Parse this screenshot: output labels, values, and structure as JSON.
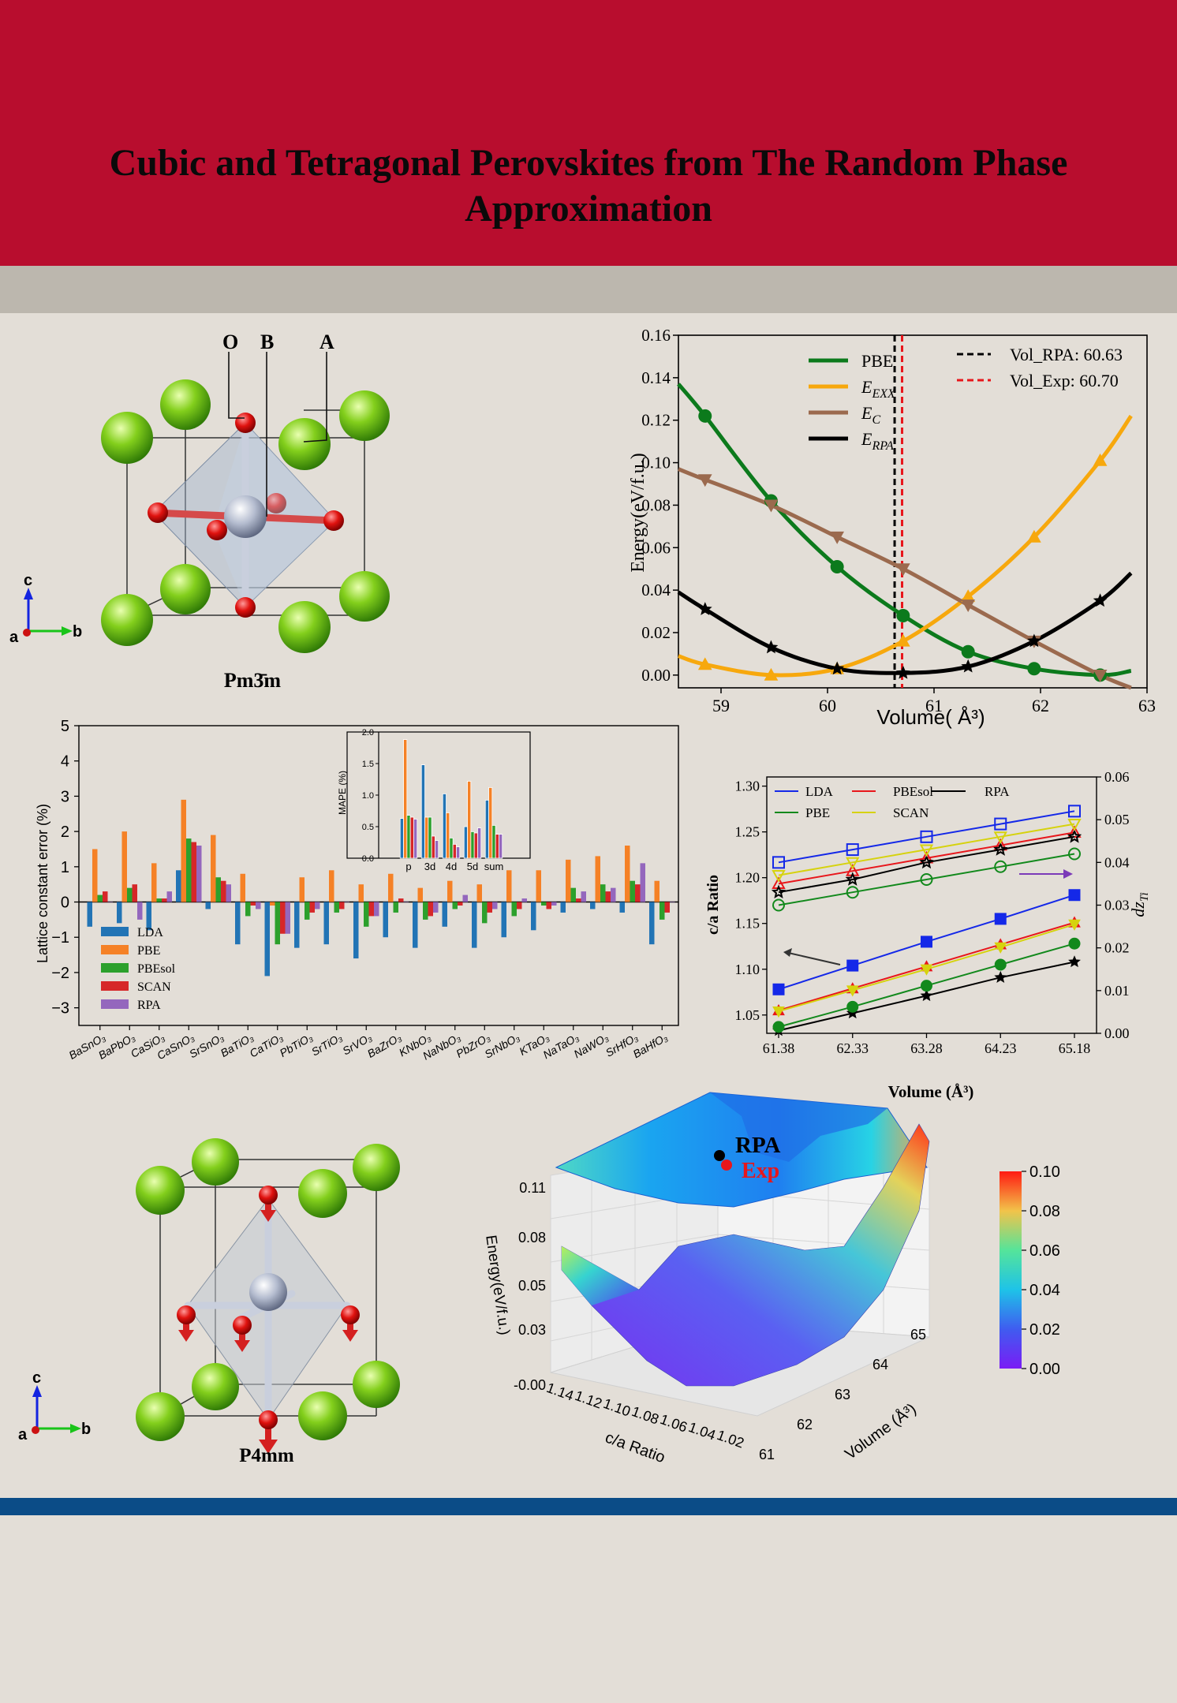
{
  "poster": {
    "title": "Cubic and Tetragonal Perovskites from The Random Phase Approximation",
    "colors": {
      "header": "#b80d2e",
      "band": "#bcb7ae",
      "background": "#e3ded7",
      "footer": "#0b4c87"
    }
  },
  "cubic_structure": {
    "labels": {
      "o": "O",
      "b": "B",
      "a": "A"
    },
    "space_group": "Pm3̄m",
    "axes": {
      "c": "c",
      "a": "a",
      "b": "b"
    }
  },
  "tetragonal_structure": {
    "space_group": "P4mm",
    "axes": {
      "c": "c",
      "a": "a",
      "b": "b"
    }
  },
  "chart_data": [
    {
      "id": "energy_volume",
      "type": "line",
      "xlabel": "Volume( Å³)",
      "ylabel": "Energy(eV/f.u.)",
      "xlim": [
        58.6,
        63.0
      ],
      "ylim": [
        -0.006,
        0.16
      ],
      "xticks": [
        "59",
        "60",
        "61",
        "62",
        "63"
      ],
      "yticks": [
        "0.00",
        "0.02",
        "0.04",
        "0.06",
        "0.08",
        "0.10",
        "0.12",
        "0.14",
        "0.16"
      ],
      "series": [
        {
          "name": "PBE",
          "color": "#0c7a1c",
          "marker": "circle",
          "x": [
            58.6,
            58.85,
            59.47,
            60.09,
            60.71,
            61.32,
            61.94,
            62.56,
            62.85
          ],
          "y": [
            0.137,
            0.122,
            0.082,
            0.051,
            0.028,
            0.011,
            0.003,
            0.0,
            0.002
          ]
        },
        {
          "name": "E_EXX",
          "color": "#f7a80d",
          "marker": "triangle-up",
          "x": [
            58.6,
            58.85,
            59.47,
            60.09,
            60.71,
            61.32,
            61.94,
            62.56,
            62.85
          ],
          "y": [
            0.009,
            0.005,
            0.0,
            0.003,
            0.016,
            0.037,
            0.065,
            0.101,
            0.122
          ]
        },
        {
          "name": "E_C",
          "color": "#9b6a4e",
          "marker": "triangle-down",
          "x": [
            58.6,
            58.85,
            59.47,
            60.09,
            60.71,
            61.32,
            61.94,
            62.56,
            62.85
          ],
          "y": [
            0.097,
            0.092,
            0.08,
            0.065,
            0.05,
            0.033,
            0.016,
            0.0,
            -0.006
          ]
        },
        {
          "name": "E_RPA",
          "color": "#000000",
          "marker": "star",
          "x": [
            58.6,
            58.85,
            59.47,
            60.09,
            60.71,
            61.32,
            61.94,
            62.56,
            62.85
          ],
          "y": [
            0.039,
            0.031,
            0.013,
            0.003,
            0.001,
            0.004,
            0.016,
            0.035,
            0.048
          ]
        }
      ],
      "vlines": [
        {
          "label": "Vol_RPA: 60.63",
          "x": 60.63,
          "color": "#000000"
        },
        {
          "label": "Vol_Exp: 60.70",
          "x": 60.7,
          "color": "#e8161b"
        }
      ],
      "legend_labels": {
        "pbe": "PBE",
        "exx": "E",
        "exx_sub": "EXX",
        "c": "E",
        "c_sub": "C",
        "rpa": "E",
        "rpa_sub": "RPA"
      }
    },
    {
      "id": "lattice_error",
      "type": "bar",
      "ylabel": "Lattice constant error (%)",
      "ylim": [
        -3.5,
        5
      ],
      "yticks": [
        "−3",
        "−2",
        "−1",
        "0",
        "1",
        "2",
        "3",
        "4",
        "5"
      ],
      "categories": [
        "BaSnO₃",
        "BaPbO₃",
        "CaSiO₃",
        "CaSnO₃",
        "SrSnO₃",
        "BaTiO₃",
        "CaTiO₃",
        "PbTiO₃",
        "SrTiO₃",
        "SrVO₃",
        "BaZrO₃",
        "KNbO₃",
        "NaNbO₃",
        "PbZrO₃",
        "SrNbO₃",
        "KTaO₃",
        "NaTaO₃",
        "NaWO₃",
        "SrHfO₃",
        "BaHfO₃"
      ],
      "series": [
        {
          "name": "LDA",
          "color": "#2274b5",
          "values": [
            -0.7,
            -0.6,
            -0.8,
            0.9,
            -0.2,
            -1.2,
            -2.1,
            -1.3,
            -1.2,
            -1.6,
            -1.0,
            -1.3,
            -0.7,
            -1.3,
            -1.0,
            -0.8,
            -0.3,
            -0.2,
            -0.3,
            -1.2
          ]
        },
        {
          "name": "PBE",
          "color": "#f58126",
          "values": [
            1.5,
            2.0,
            1.1,
            2.9,
            1.9,
            0.8,
            -0.1,
            0.7,
            0.9,
            0.5,
            0.8,
            0.4,
            0.6,
            0.5,
            0.9,
            0.9,
            1.2,
            1.3,
            1.6,
            0.6
          ]
        },
        {
          "name": "PBEsol",
          "color": "#2ca02c",
          "values": [
            0.2,
            0.4,
            0.1,
            1.8,
            0.7,
            -0.4,
            -1.2,
            -0.5,
            -0.3,
            -0.7,
            -0.3,
            -0.5,
            -0.2,
            -0.6,
            -0.4,
            -0.1,
            0.4,
            0.5,
            0.6,
            -0.5
          ]
        },
        {
          "name": "SCAN",
          "color": "#d62728",
          "values": [
            0.3,
            0.5,
            0.1,
            1.7,
            0.6,
            -0.1,
            -0.9,
            -0.3,
            -0.2,
            -0.4,
            0.1,
            -0.4,
            -0.1,
            -0.3,
            -0.2,
            -0.2,
            0.1,
            0.3,
            0.5,
            -0.3
          ]
        },
        {
          "name": "RPA",
          "color": "#9467bd",
          "values": [
            0.0,
            -0.5,
            0.3,
            1.6,
            0.5,
            -0.2,
            -0.9,
            -0.2,
            0.0,
            -0.4,
            0.0,
            -0.3,
            0.2,
            -0.2,
            0.1,
            -0.1,
            0.3,
            0.4,
            1.1,
            0.0
          ]
        }
      ]
    },
    {
      "id": "mape_inset",
      "type": "bar",
      "ylabel": "MAPE (%)",
      "ylim": [
        0,
        2.0
      ],
      "yticks": [
        "0.0",
        "0.5",
        "1.0",
        "1.5",
        "2.0"
      ],
      "categories": [
        "p",
        "3d",
        "4d",
        "5d",
        "sum"
      ],
      "series": [
        {
          "name": "LDA",
          "color": "#2274b5",
          "values": [
            0.63,
            1.48,
            1.02,
            0.5,
            0.92
          ]
        },
        {
          "name": "PBE",
          "color": "#f58126",
          "values": [
            1.88,
            0.65,
            0.72,
            1.22,
            1.12
          ]
        },
        {
          "name": "PBEsol",
          "color": "#2ca02c",
          "values": [
            0.68,
            0.65,
            0.32,
            0.42,
            0.52
          ]
        },
        {
          "name": "SCAN",
          "color": "#d62728",
          "values": [
            0.65,
            0.35,
            0.22,
            0.4,
            0.38
          ]
        },
        {
          "name": "RPA",
          "color": "#9467bd",
          "values": [
            0.62,
            0.28,
            0.18,
            0.48,
            0.38
          ]
        }
      ]
    },
    {
      "id": "ca_ratio",
      "type": "line",
      "xlabel": "Volume (Å³)",
      "ylabel_left": "c/a Ratio",
      "ylabel_right": "dz",
      "ylabel_right_sub": "Ti",
      "xticks": [
        "61.38",
        "62.33",
        "63.28",
        "64.23",
        "65.18"
      ],
      "x": [
        61.38,
        62.33,
        63.28,
        64.23,
        65.18
      ],
      "ylim_left": [
        1.03,
        1.31
      ],
      "ylim_right": [
        0.0,
        0.06
      ],
      "yticks_left": [
        "1.05",
        "1.10",
        "1.15",
        "1.20",
        "1.25",
        "1.30"
      ],
      "yticks_right": [
        "0.00",
        "0.01",
        "0.02",
        "0.03",
        "0.04",
        "0.05",
        "0.06"
      ],
      "series": [
        {
          "name": "LDA",
          "color": "#1428e8",
          "ca": [
            1.078,
            1.104,
            1.13,
            1.155,
            1.181
          ],
          "dz": [
            0.04,
            0.043,
            0.046,
            0.049,
            0.052
          ]
        },
        {
          "name": "PBEsol",
          "color": "#e8161b",
          "ca": [
            1.055,
            1.079,
            1.103,
            1.127,
            1.151
          ],
          "dz": [
            0.035,
            0.038,
            0.041,
            0.044,
            0.047
          ]
        },
        {
          "name": "RPA",
          "color": "#000000",
          "ca": [
            1.033,
            1.052,
            1.071,
            1.091,
            1.108
          ],
          "dz": [
            0.033,
            0.036,
            0.04,
            0.043,
            0.046
          ]
        },
        {
          "name": "PBE",
          "color": "#12891c",
          "ca": [
            1.037,
            1.059,
            1.082,
            1.105,
            1.128
          ],
          "dz": [
            0.03,
            0.033,
            0.036,
            0.039,
            0.042
          ]
        },
        {
          "name": "SCAN",
          "color": "#d6d20e",
          "ca": [
            1.054,
            1.077,
            1.1,
            1.124,
            1.149
          ],
          "dz": [
            0.037,
            0.04,
            0.043,
            0.046,
            0.049
          ]
        }
      ]
    },
    {
      "id": "energy_surface",
      "type": "heatmap",
      "zlabel": "Energy(eV/f.u.)",
      "xlabel": "c/a Ratio",
      "ylabel": "Volume (Å³)",
      "zticks": [
        "-0.00",
        "0.03",
        "0.05",
        "0.08",
        "0.11"
      ],
      "ca_ticks": [
        "1.14",
        "1.12",
        "1.10",
        "1.08",
        "1.06",
        "1.04",
        "1.02"
      ],
      "vol_ticks": [
        "61",
        "62",
        "63",
        "64",
        "65"
      ],
      "annotations": {
        "rpa": "RPA",
        "exp": "Exp"
      },
      "colorbar": {
        "ticks": [
          "0.00",
          "0.02",
          "0.04",
          "0.06",
          "0.08",
          "0.10"
        ],
        "range": [
          0.0,
          0.1
        ]
      }
    }
  ]
}
